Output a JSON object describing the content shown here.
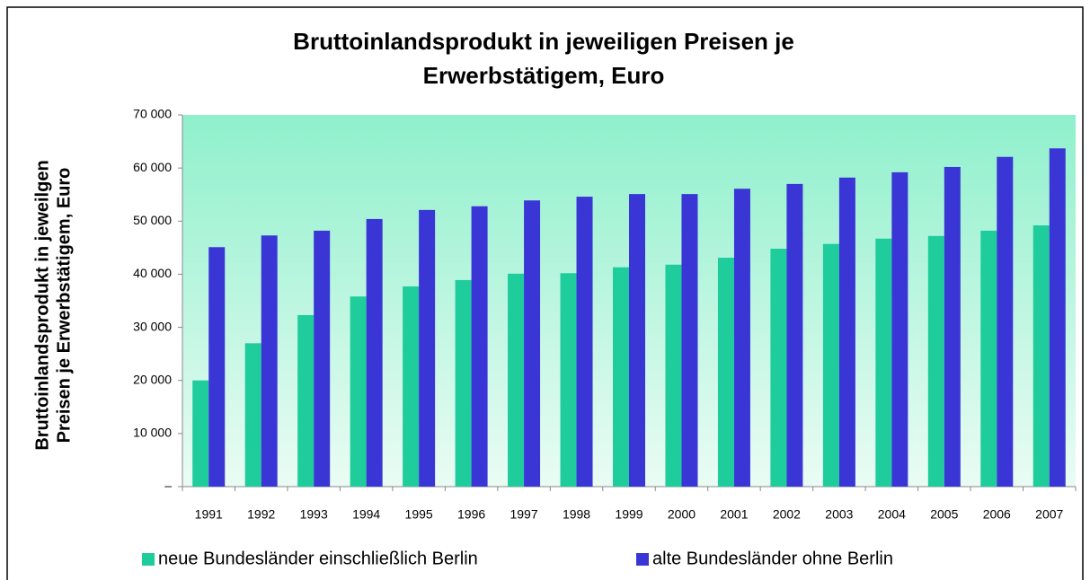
{
  "chart_data": {
    "type": "bar",
    "title": [
      "Bruttoinlandsprodukt  in jeweiligen Preisen je",
      "Erwerbstätigem, Euro"
    ],
    "ylabel": [
      "Bruttoinlandsprodukt  in  jeweilgen",
      "Preisen je Erwerbstätigem, Euro"
    ],
    "categories": [
      "1991",
      "1992",
      "1993",
      "1994",
      "1995",
      "1996",
      "1997",
      "1998",
      "1999",
      "2000",
      "2001",
      "2002",
      "2003",
      "2004",
      "2005",
      "2006",
      "2007"
    ],
    "series": [
      {
        "name": "neue Bundesländer einschließlich Berlin",
        "color": "#1ecc9c",
        "values": [
          20000,
          27000,
          32300,
          35800,
          37700,
          38900,
          40100,
          40200,
          41300,
          41800,
          43100,
          44800,
          45700,
          46700,
          47200,
          48200,
          49200
        ]
      },
      {
        "name": "alte Bundesländer ohne Berlin",
        "color": "#3a36d6",
        "values": [
          45100,
          47300,
          48200,
          50400,
          52100,
          52800,
          53900,
          54600,
          55100,
          55100,
          56100,
          57000,
          58200,
          59200,
          60200,
          62100,
          63700
        ]
      }
    ],
    "ylim": [
      0,
      70000
    ],
    "yticks": [
      {
        "value": 0,
        "label": "–"
      },
      {
        "value": 10000,
        "label": "10 000"
      },
      {
        "value": 20000,
        "label": "20 000"
      },
      {
        "value": 30000,
        "label": "30 000"
      },
      {
        "value": 40000,
        "label": "40 000"
      },
      {
        "value": 50000,
        "label": "50 000"
      },
      {
        "value": 60000,
        "label": "60 000"
      },
      {
        "value": 70000,
        "label": "70 000"
      }
    ],
    "legend": "bottom",
    "grid": false
  }
}
